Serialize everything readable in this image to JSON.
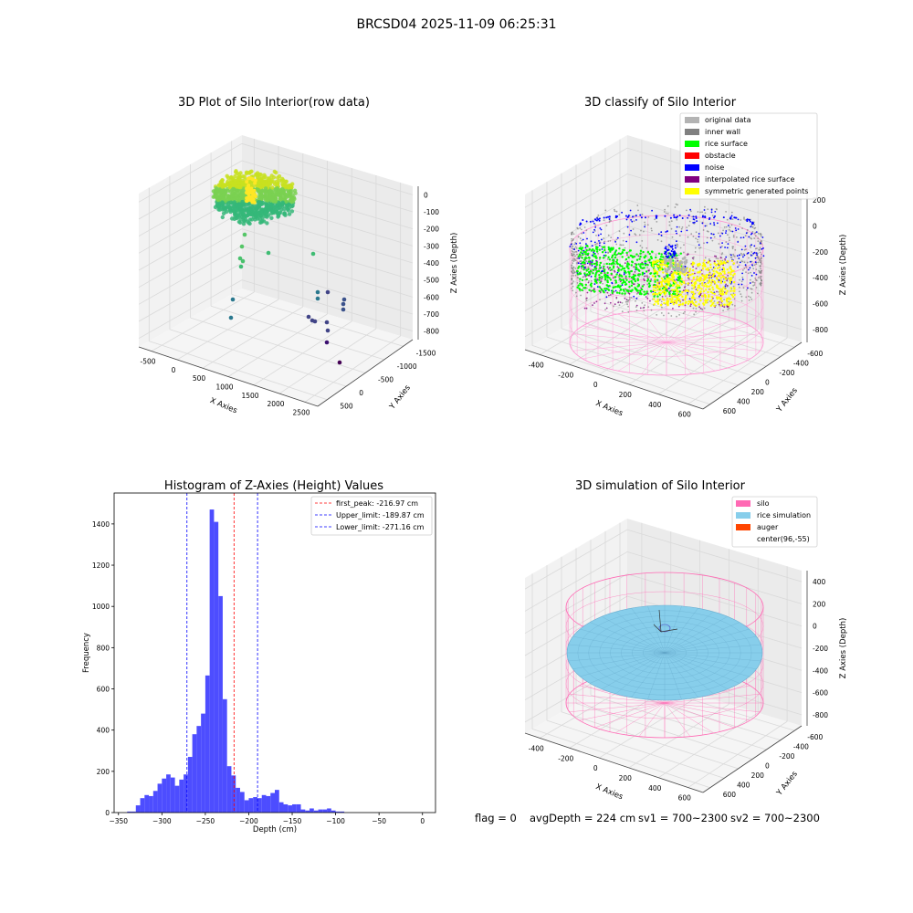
{
  "suptitle": "BRCSD04 2025-11-09 06:25:31",
  "footer": {
    "flag": "flag = 0",
    "avg": "avgDepth = 224 cm",
    "sv1": "sv1 = 700~2300",
    "sv2": "sv2 = 700~2300"
  },
  "chart_data": [
    {
      "type": "scatter",
      "subtype": "3d",
      "title": "3D Plot of Silo Interior(row data)",
      "xlabel": "X Axies",
      "ylabel": "Y Axies",
      "zlabel": "Z Axies (Depth)",
      "x_ticks": [
        "-500",
        "0",
        "500",
        "1000",
        "1500",
        "2000",
        "2500"
      ],
      "y_ticks": [
        "500",
        "0",
        "-500",
        "-1000",
        "-1500"
      ],
      "z_ticks": [
        "0",
        "-100",
        "-200",
        "-300",
        "-400",
        "-500",
        "-600",
        "-700",
        "-800"
      ],
      "xlim": [
        -600,
        2700
      ],
      "ylim": [
        -1600,
        650
      ],
      "zlim": [
        -850,
        20
      ],
      "colors": {
        "high": "#fde725",
        "mid": "#21918c",
        "low": "#440154"
      }
    },
    {
      "type": "scatter",
      "subtype": "3d",
      "title": "3D classify of Silo Interior",
      "xlabel": "X Axies",
      "ylabel": "Y Axies",
      "zlabel": "Z Axies (Depth)",
      "x_ticks": [
        "-400",
        "-200",
        "0",
        "200",
        "400",
        "600"
      ],
      "y_ticks": [
        "600",
        "400",
        "200",
        "0",
        "-200",
        "-400",
        "-600"
      ],
      "z_ticks": [
        "200",
        "0",
        "-200",
        "-400",
        "-600",
        "-800"
      ],
      "legend_position": "top-right",
      "legend": [
        {
          "label": "original data",
          "color": "#b3b3b3"
        },
        {
          "label": "inner wall",
          "color": "#808080"
        },
        {
          "label": "rice surface",
          "color": "#00ff00"
        },
        {
          "label": "obstacle",
          "color": "#ff0000"
        },
        {
          "label": "noise",
          "color": "#0000ff"
        },
        {
          "label": "interpolated rice surface",
          "color": "#800080"
        },
        {
          "label": "symmetric generated points",
          "color": "#ffff00"
        }
      ]
    },
    {
      "type": "bar",
      "subtype": "histogram",
      "title": "Histogram of Z-Axies (Height) Values",
      "xlabel": "Depth (cm)",
      "ylabel": "Frequency",
      "xlim": [
        -355,
        15
      ],
      "ylim": [
        0,
        1550
      ],
      "bin_width": 5,
      "bin_start": -340,
      "x_ticks": [
        -350,
        -300,
        -250,
        -200,
        -150,
        -100,
        -50,
        0
      ],
      "y_ticks": [
        0,
        200,
        400,
        600,
        800,
        1000,
        1200,
        1400
      ],
      "bar_color": "#4d4dff",
      "values": [
        5,
        5,
        35,
        70,
        85,
        80,
        105,
        140,
        165,
        185,
        170,
        130,
        160,
        185,
        270,
        380,
        420,
        480,
        665,
        1470,
        1410,
        1050,
        550,
        225,
        180,
        120,
        100,
        60,
        70,
        75,
        70,
        85,
        80,
        95,
        110,
        50,
        40,
        35,
        40,
        40,
        15,
        10,
        20,
        10,
        15,
        15,
        20,
        10,
        5,
        5
      ],
      "lines": [
        {
          "label": "first_peak: -216.97 cm",
          "x": -216.97,
          "color": "#ff0000"
        },
        {
          "label": "Upper_limit: -189.87 cm",
          "x": -189.87,
          "color": "#0000ff"
        },
        {
          "label": "Lower_limit: -271.16 cm",
          "x": -271.16,
          "color": "#0000ff"
        }
      ],
      "legend_position": "top-right"
    },
    {
      "type": "scatter",
      "subtype": "3d",
      "title": "3D simulation of Silo Interior",
      "xlabel": "X Axies",
      "ylabel": "Y Axies",
      "zlabel": "Z Axies (Depth)",
      "x_ticks": [
        "-400",
        "-200",
        "0",
        "200",
        "400",
        "600"
      ],
      "y_ticks": [
        "600",
        "400",
        "200",
        "0",
        "-200",
        "-400",
        "-600"
      ],
      "z_ticks": [
        "400",
        "200",
        "0",
        "-200",
        "-400",
        "-600",
        "-800"
      ],
      "legend_position": "top-right",
      "legend": [
        {
          "label": "silo",
          "color": "#ff69b4"
        },
        {
          "label": "rice simulation",
          "color": "#87ceeb"
        },
        {
          "label": "auger",
          "color": "#ff4500"
        },
        {
          "label": "center(96,-55)",
          "color": "#ffffff"
        }
      ]
    }
  ]
}
